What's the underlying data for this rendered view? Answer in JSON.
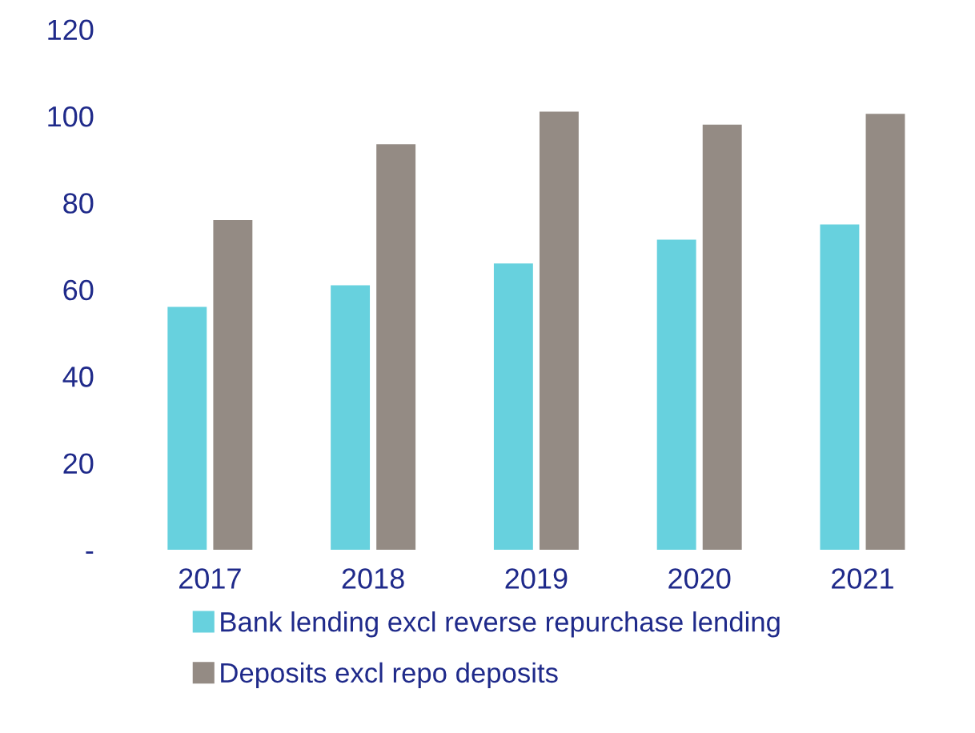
{
  "chart_data": {
    "type": "bar",
    "categories": [
      "2017",
      "2018",
      "2019",
      "2020",
      "2021"
    ],
    "series": [
      {
        "name": "Bank lending excl reverse repurchase lending",
        "color": "#67d1de",
        "values": [
          56,
          61,
          66,
          71.5,
          75
        ]
      },
      {
        "name": "Deposits excl repo deposits",
        "color": "#948b84",
        "values": [
          76,
          93.5,
          101,
          98,
          100.5
        ]
      }
    ],
    "ylim": [
      0,
      120
    ],
    "yticks": [
      {
        "value": 0,
        "label": "-"
      },
      20,
      40,
      60,
      80,
      100,
      120
    ],
    "grid": false,
    "legend": "bottom"
  }
}
